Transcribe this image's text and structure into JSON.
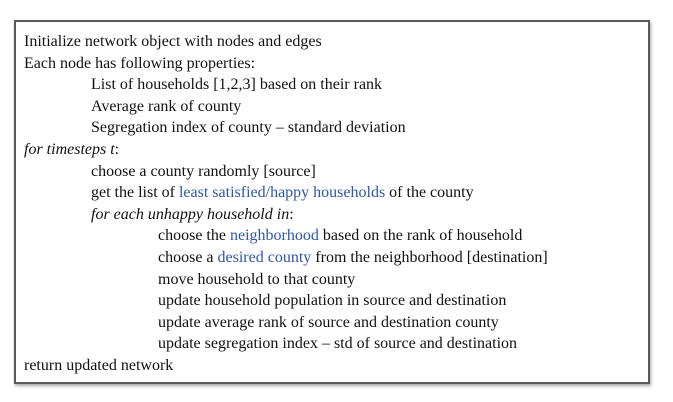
{
  "algorithm": {
    "lines": [
      {
        "indent": 0,
        "italic": false,
        "segments": [
          {
            "text": "Initialize network object with nodes and edges"
          }
        ]
      },
      {
        "indent": 0,
        "italic": false,
        "segments": [
          {
            "text": "Each node has following properties:"
          }
        ]
      },
      {
        "indent": 1,
        "italic": false,
        "segments": [
          {
            "text": "List of households [1,2,3] based on their rank"
          }
        ]
      },
      {
        "indent": 1,
        "italic": false,
        "segments": [
          {
            "text": "Average rank of county"
          }
        ]
      },
      {
        "indent": 1,
        "italic": false,
        "segments": [
          {
            "text": "Segregation index of county – standard deviation"
          }
        ]
      },
      {
        "indent": 0,
        "italic": false,
        "segments": [
          {
            "text": "for timesteps t",
            "italic": true
          },
          {
            "text": ":"
          }
        ]
      },
      {
        "indent": 1,
        "italic": false,
        "segments": [
          {
            "text": "choose a county randomly [source]"
          }
        ]
      },
      {
        "indent": 1,
        "italic": false,
        "segments": [
          {
            "text": "get the list of "
          },
          {
            "text": "least satisfied/happy households",
            "highlight": true
          },
          {
            "text": " of the county"
          }
        ]
      },
      {
        "indent": 1,
        "italic": false,
        "segments": [
          {
            "text": "for each unhappy household in",
            "italic": true
          },
          {
            "text": ":"
          }
        ]
      },
      {
        "indent": 2,
        "italic": false,
        "segments": [
          {
            "text": "choose the "
          },
          {
            "text": "neighborhood",
            "highlight": true
          },
          {
            "text": " based on the rank of household"
          }
        ]
      },
      {
        "indent": 2,
        "italic": false,
        "segments": [
          {
            "text": "choose a "
          },
          {
            "text": "desired county",
            "highlight": true
          },
          {
            "text": " from the neighborhood [destination]"
          }
        ]
      },
      {
        "indent": 2,
        "italic": false,
        "segments": [
          {
            "text": "move household to that county"
          }
        ]
      },
      {
        "indent": 2,
        "italic": false,
        "segments": [
          {
            "text": "update household population in source and destination"
          }
        ]
      },
      {
        "indent": 2,
        "italic": false,
        "segments": [
          {
            "text": "update average rank of source and destination county"
          }
        ]
      },
      {
        "indent": 2,
        "italic": false,
        "segments": [
          {
            "text": "update segregation index – std of source and destination"
          }
        ]
      },
      {
        "indent": 0,
        "italic": false,
        "segments": [
          {
            "text": "return updated network"
          }
        ]
      }
    ]
  },
  "colors": {
    "highlight": "#2f56a8",
    "text": "#111111",
    "border": "#5a5a5a"
  }
}
